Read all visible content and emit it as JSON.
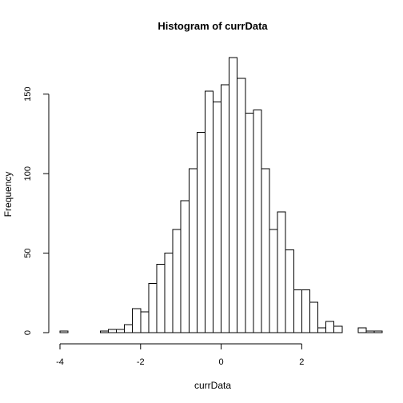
{
  "chart_data": {
    "type": "bar",
    "title": "Histogram of currData",
    "xlabel": "currData",
    "ylabel": "Frequency",
    "bin_width": 0.2,
    "bin_edges_start": -4.0,
    "values": [
      1,
      0,
      0,
      0,
      0,
      1,
      2,
      2,
      5,
      15,
      13,
      31,
      43,
      50,
      65,
      83,
      103,
      126,
      152,
      145,
      156,
      173,
      160,
      138,
      140,
      103,
      65,
      76,
      52,
      27,
      27,
      19,
      3,
      7,
      4,
      0,
      0,
      3,
      1,
      1
    ],
    "xlim": [
      -4.0,
      3.6
    ],
    "ylim": [
      0,
      173
    ],
    "x_ticks": [
      -4,
      -2,
      0,
      2
    ],
    "y_ticks": [
      0,
      50,
      100,
      150
    ],
    "colors": {
      "bar_fill": "#ffffff",
      "bar_stroke": "#000000"
    },
    "grid": false
  }
}
